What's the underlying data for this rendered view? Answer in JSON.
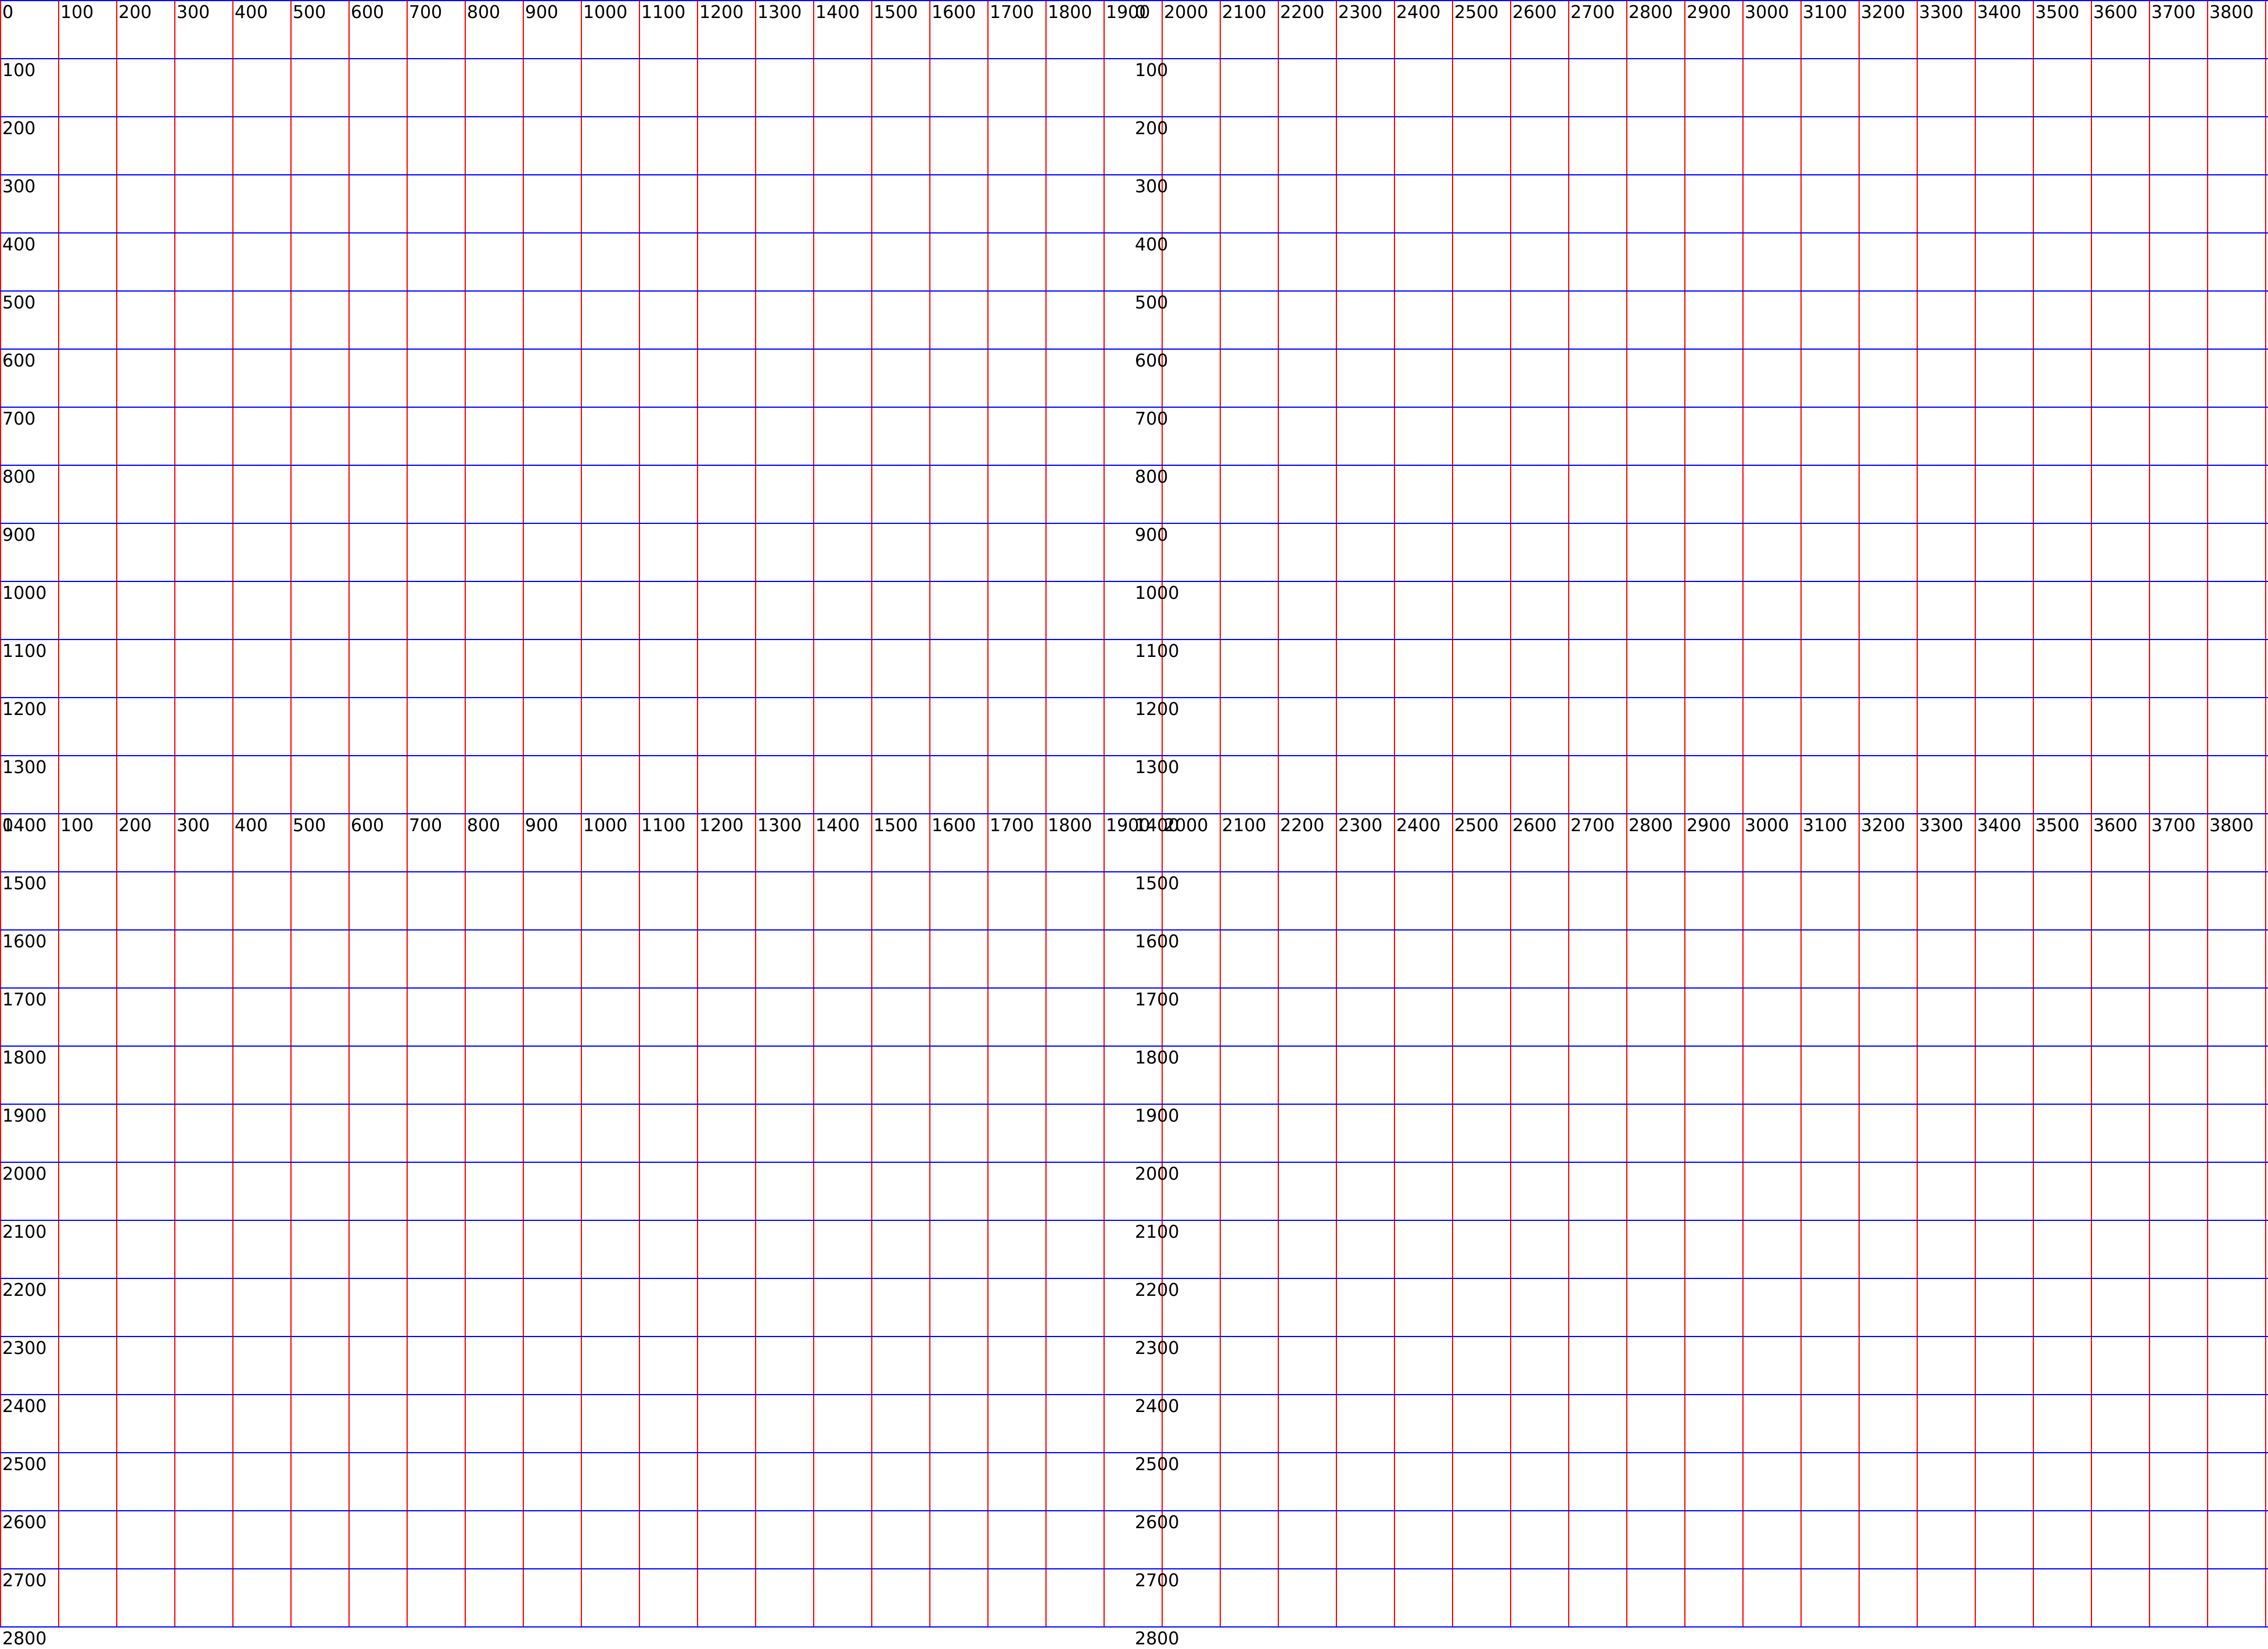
{
  "note": "calibration grid"
}
